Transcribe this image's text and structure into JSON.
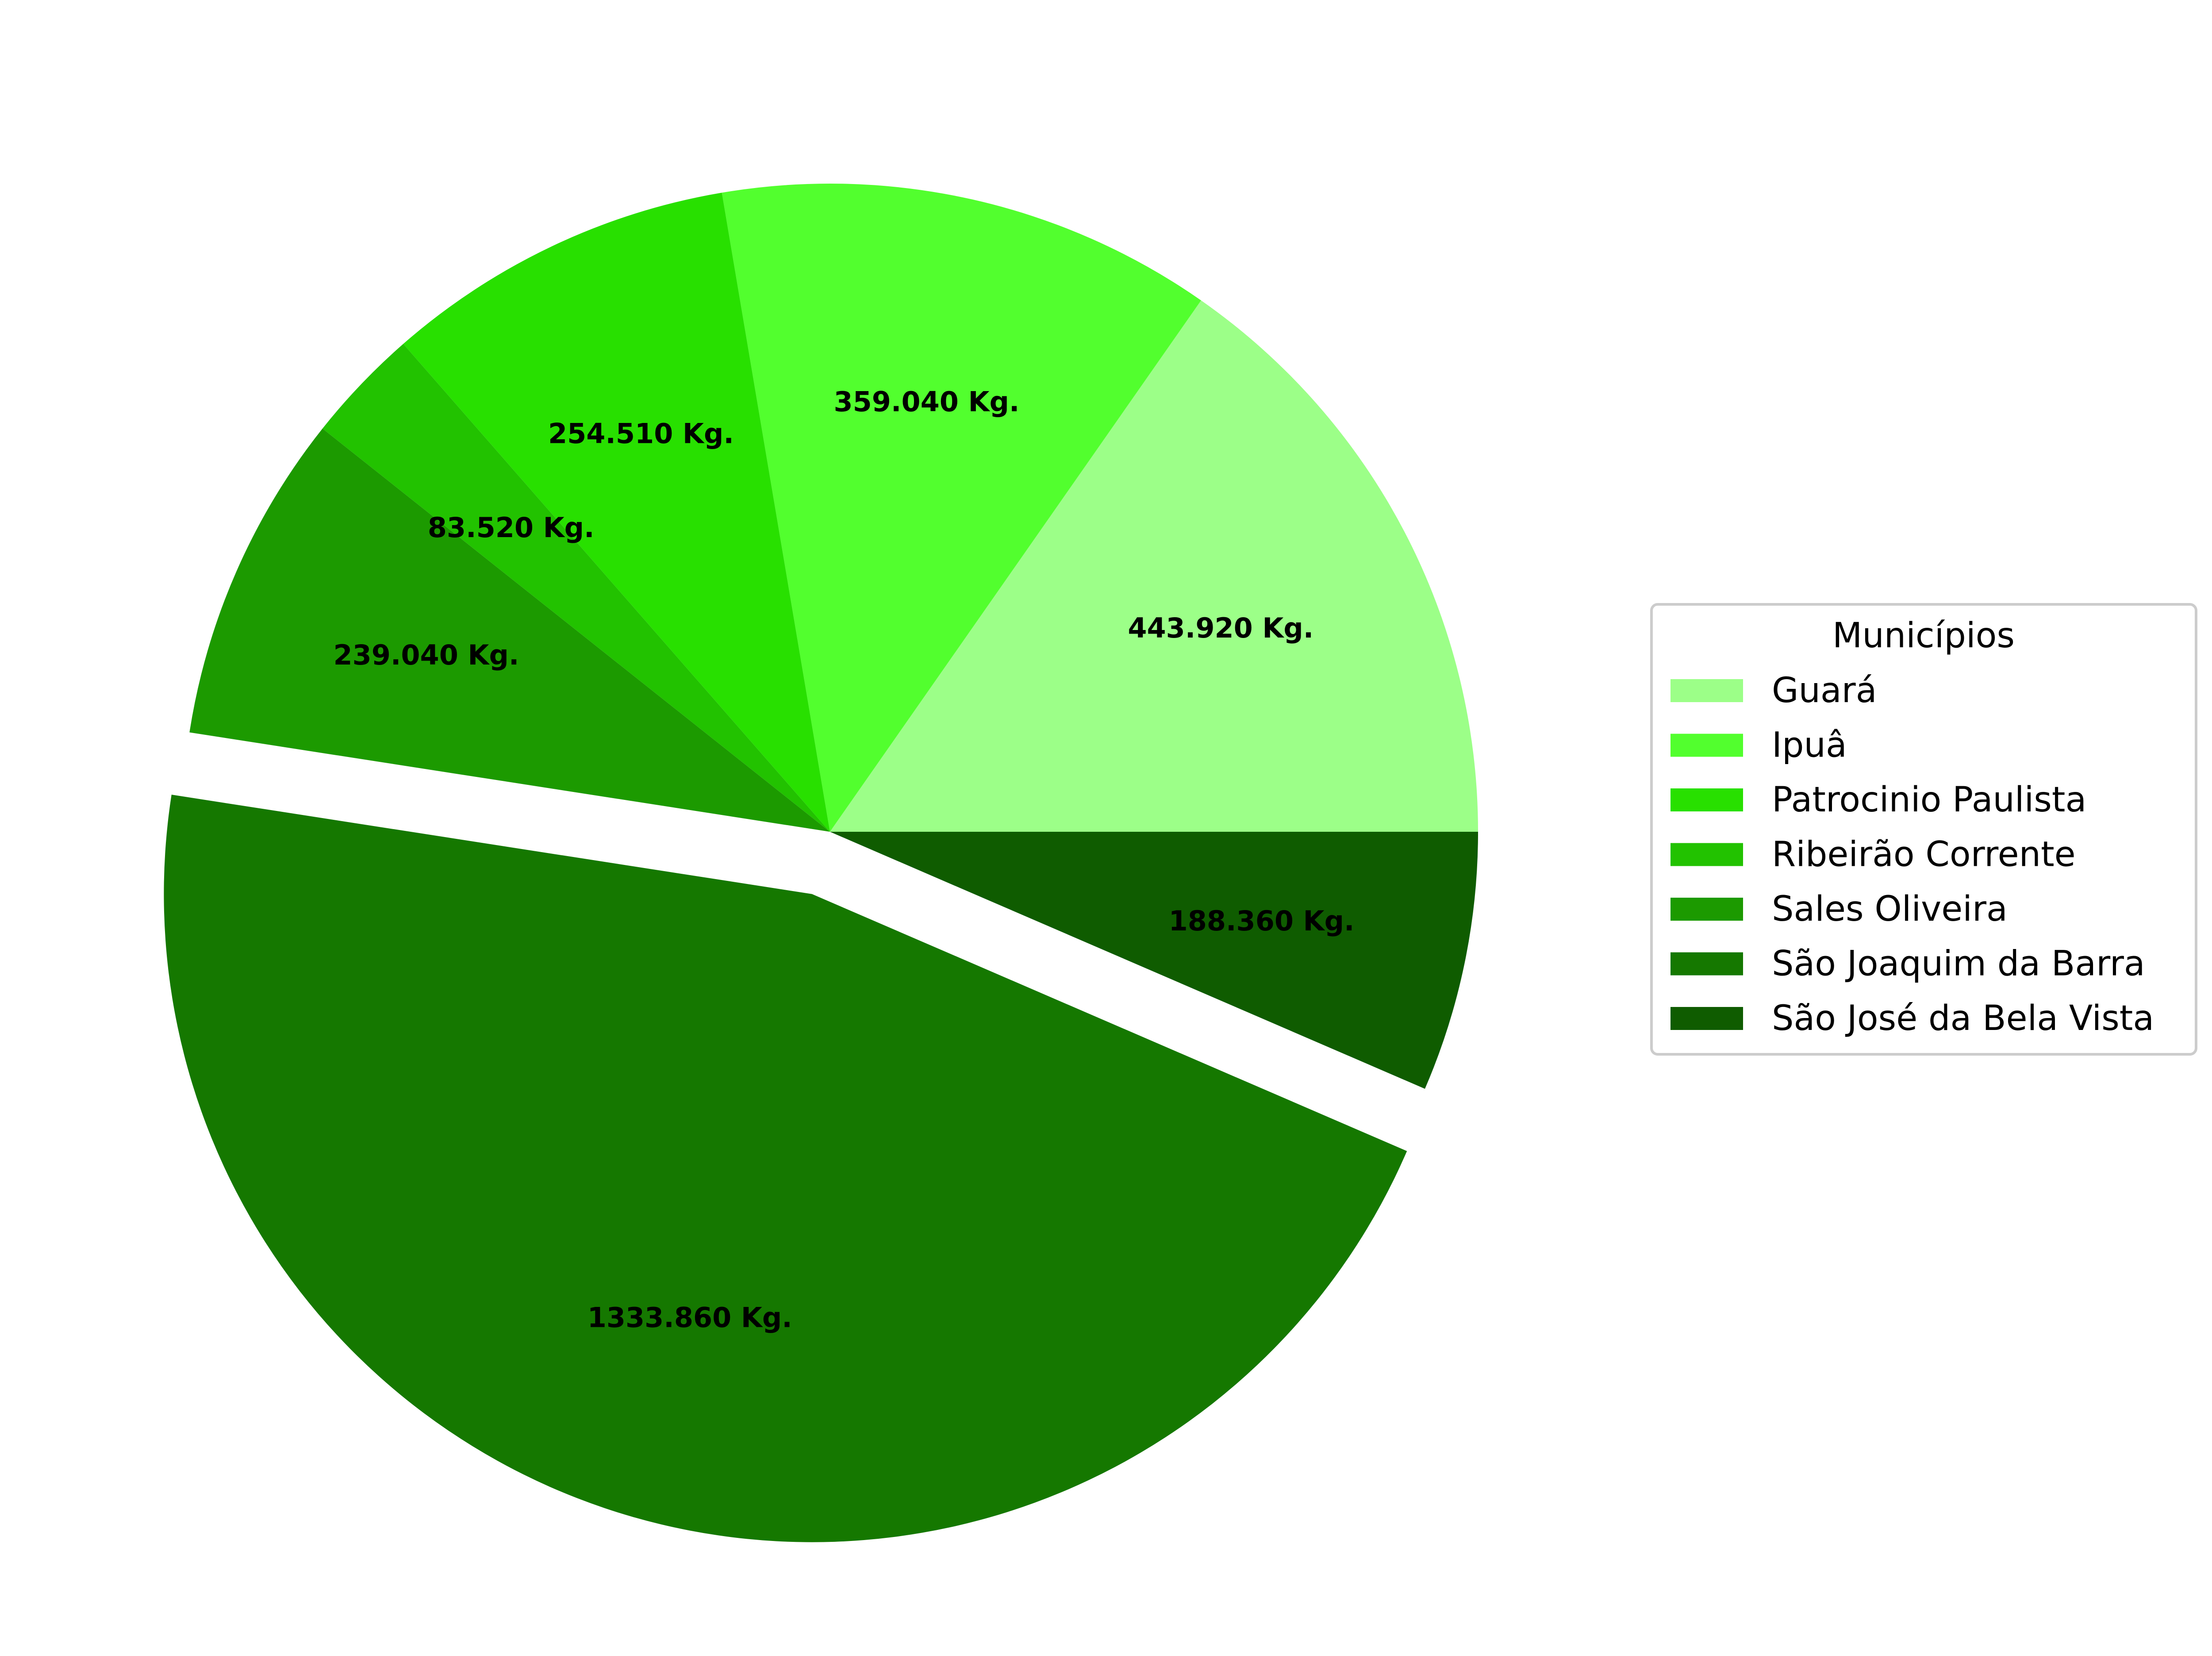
{
  "chart_data": {
    "type": "pie",
    "unit_suffix": " Kg.",
    "start_angle_deg": 0,
    "direction": "counterclockwise",
    "slices": [
      {
        "name": "Guará",
        "value": 443.92,
        "label": "443.920 Kg.",
        "color": "#9cff88",
        "explode": false
      },
      {
        "name": "Ipuâ",
        "value": 359.04,
        "label": "359.040 Kg.",
        "color": "#52ff2e",
        "explode": false
      },
      {
        "name": "Patrocinio Paulista",
        "value": 254.51,
        "label": "254.510 Kg.",
        "color": "#28e000",
        "explode": false
      },
      {
        "name": "Ribeirão Corrente",
        "value": 83.52,
        "label": "83.520 Kg.",
        "color": "#22c200",
        "explode": false
      },
      {
        "name": "Sales Oliveira",
        "value": 239.04,
        "label": "239.040 Kg.",
        "color": "#1c9a00",
        "explode": false
      },
      {
        "name": "São Joaquim da Barra",
        "value": 1333.86,
        "label": "1333.860 Kg.",
        "color": "#157800",
        "explode": true
      },
      {
        "name": "São José da Bela Vista",
        "value": 188.36,
        "label": "188.360 Kg.",
        "color": "#0f5c00",
        "explode": false
      }
    ],
    "legend": {
      "title": "Municípios",
      "placement": "center-right"
    }
  }
}
